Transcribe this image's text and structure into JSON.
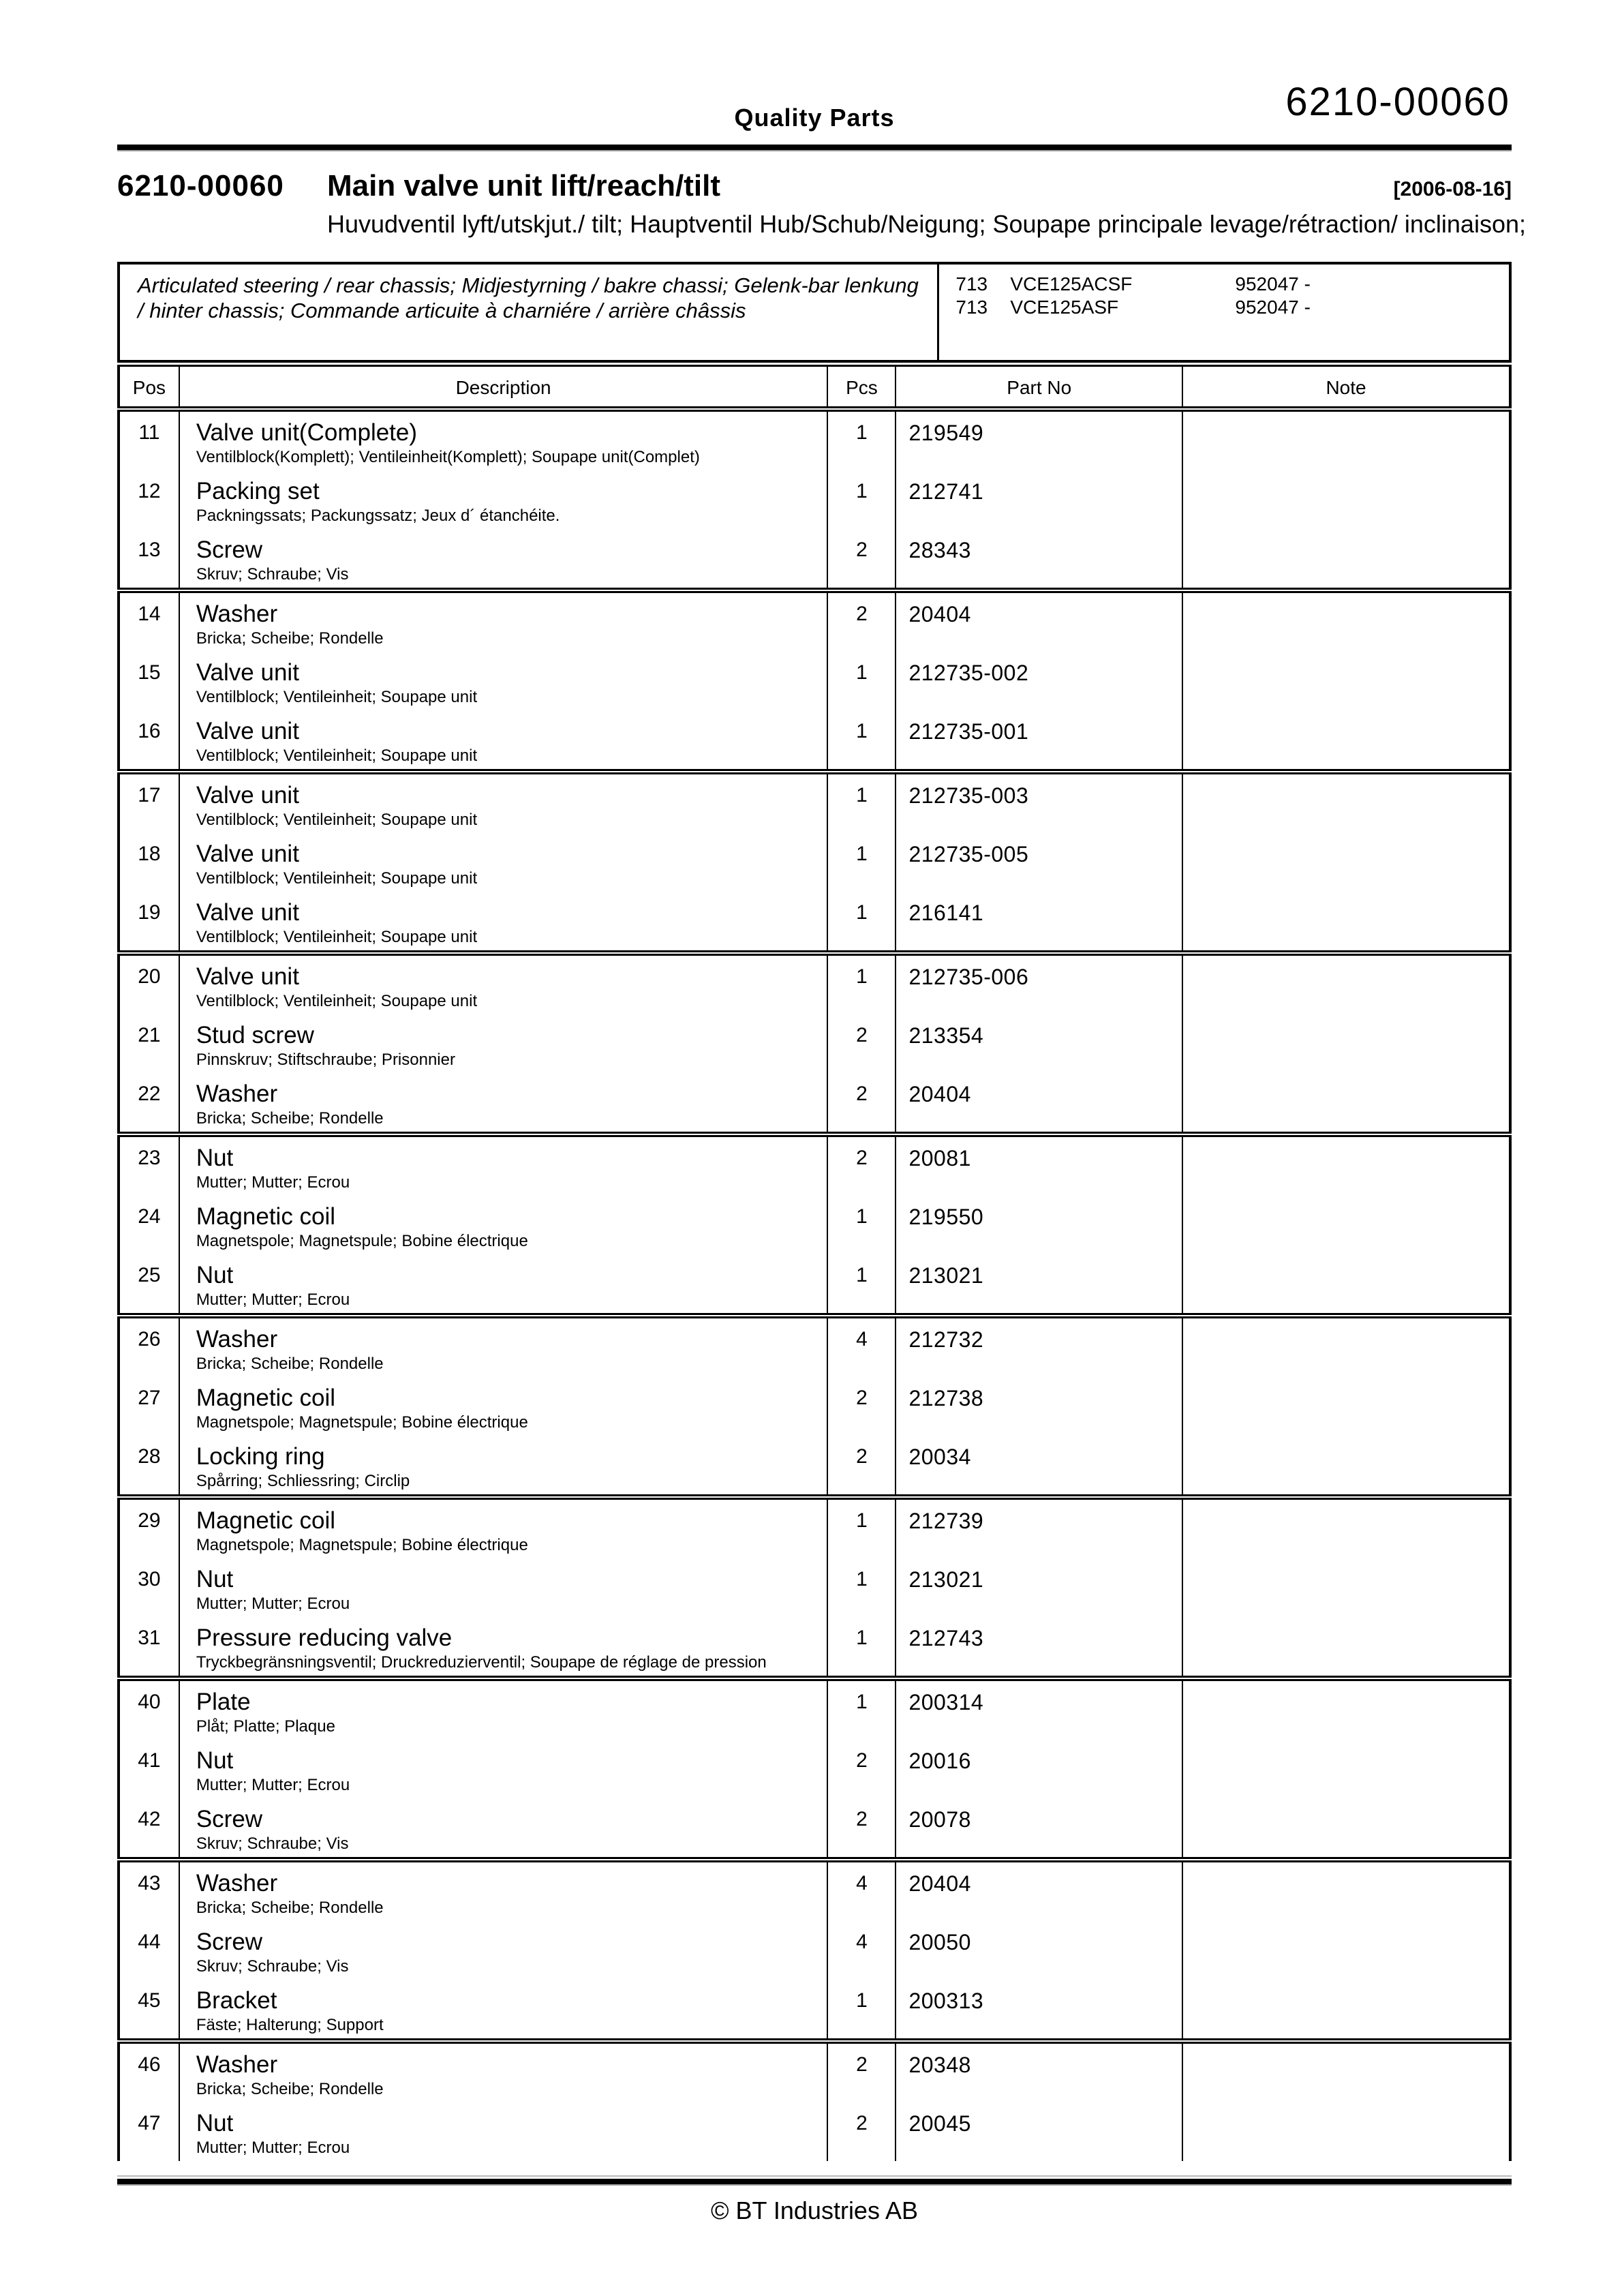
{
  "page": {
    "brand": "Quality Parts",
    "doc_code": "6210-00060",
    "title_code": "6210-00060",
    "title": "Main valve unit lift/reach/tilt",
    "date": "[2006-08-16]",
    "subtitle": "Huvudventil lyft/utskjut./ tilt; Hauptventil Hub/Schub/Neigung; Soupape principale levage/rétraction/ inclinaison;",
    "footer": "© BT Industries AB"
  },
  "info_box": {
    "description": "Articulated steering / rear chassis; Midjestyrning / bakre chassi; Gelenk-bar lenkung / hinter chassis; Commande articuite à charniére / arrière châssis",
    "models": [
      {
        "code": "713",
        "name": "VCE125ACSF",
        "serial": "952047 -"
      },
      {
        "code": "713",
        "name": "VCE125ASF",
        "serial": "952047 -"
      }
    ]
  },
  "table": {
    "headers": {
      "pos": "Pos",
      "description": "Description",
      "pcs": "Pcs",
      "part_no": "Part No",
      "note": "Note"
    },
    "groups": [
      {
        "rows": [
          {
            "pos": "11",
            "description": "Valve unit(Complete)",
            "description_i18n": "Ventilblock(Komplett); Ventileinheit(Komplett); Soupape unit(Complet)",
            "pcs": "1",
            "part_no": "219549",
            "note": ""
          },
          {
            "pos": "12",
            "description": "Packing set",
            "description_i18n": "Packningssats; Packungssatz; Jeux d´ étanchéite.",
            "pcs": "1",
            "part_no": "212741",
            "note": ""
          },
          {
            "pos": "13",
            "description": "Screw",
            "description_i18n": "Skruv; Schraube; Vis",
            "pcs": "2",
            "part_no": "28343",
            "note": ""
          }
        ]
      },
      {
        "rows": [
          {
            "pos": "14",
            "description": "Washer",
            "description_i18n": "Bricka; Scheibe; Rondelle",
            "pcs": "2",
            "part_no": "20404",
            "note": ""
          },
          {
            "pos": "15",
            "description": "Valve unit",
            "description_i18n": "Ventilblock; Ventileinheit; Soupape unit",
            "pcs": "1",
            "part_no": "212735-002",
            "note": ""
          },
          {
            "pos": "16",
            "description": "Valve unit",
            "description_i18n": "Ventilblock; Ventileinheit; Soupape unit",
            "pcs": "1",
            "part_no": "212735-001",
            "note": ""
          }
        ]
      },
      {
        "rows": [
          {
            "pos": "17",
            "description": "Valve unit",
            "description_i18n": "Ventilblock; Ventileinheit; Soupape unit",
            "pcs": "1",
            "part_no": "212735-003",
            "note": ""
          },
          {
            "pos": "18",
            "description": "Valve unit",
            "description_i18n": "Ventilblock; Ventileinheit; Soupape unit",
            "pcs": "1",
            "part_no": "212735-005",
            "note": ""
          },
          {
            "pos": "19",
            "description": "Valve unit",
            "description_i18n": "Ventilblock; Ventileinheit; Soupape unit",
            "pcs": "1",
            "part_no": "216141",
            "note": ""
          }
        ]
      },
      {
        "rows": [
          {
            "pos": "20",
            "description": "Valve unit",
            "description_i18n": "Ventilblock; Ventileinheit; Soupape unit",
            "pcs": "1",
            "part_no": "212735-006",
            "note": ""
          },
          {
            "pos": "21",
            "description": "Stud screw",
            "description_i18n": "Pinnskruv; Stiftschraube; Prisonnier",
            "pcs": "2",
            "part_no": "213354",
            "note": ""
          },
          {
            "pos": "22",
            "description": "Washer",
            "description_i18n": "Bricka; Scheibe; Rondelle",
            "pcs": "2",
            "part_no": "20404",
            "note": ""
          }
        ]
      },
      {
        "rows": [
          {
            "pos": "23",
            "description": "Nut",
            "description_i18n": "Mutter; Mutter; Ecrou",
            "pcs": "2",
            "part_no": "20081",
            "note": ""
          },
          {
            "pos": "24",
            "description": "Magnetic coil",
            "description_i18n": "Magnetspole; Magnetspule; Bobine électrique",
            "pcs": "1",
            "part_no": "219550",
            "note": ""
          },
          {
            "pos": "25",
            "description": "Nut",
            "description_i18n": "Mutter; Mutter; Ecrou",
            "pcs": "1",
            "part_no": "213021",
            "note": ""
          }
        ]
      },
      {
        "rows": [
          {
            "pos": "26",
            "description": "Washer",
            "description_i18n": "Bricka; Scheibe; Rondelle",
            "pcs": "4",
            "part_no": "212732",
            "note": ""
          },
          {
            "pos": "27",
            "description": "Magnetic coil",
            "description_i18n": "Magnetspole; Magnetspule; Bobine électrique",
            "pcs": "2",
            "part_no": "212738",
            "note": ""
          },
          {
            "pos": "28",
            "description": "Locking ring",
            "description_i18n": "Spårring; Schliessring; Circlip",
            "pcs": "2",
            "part_no": "20034",
            "note": ""
          }
        ]
      },
      {
        "rows": [
          {
            "pos": "29",
            "description": "Magnetic coil",
            "description_i18n": "Magnetspole; Magnetspule; Bobine électrique",
            "pcs": "1",
            "part_no": "212739",
            "note": ""
          },
          {
            "pos": "30",
            "description": "Nut",
            "description_i18n": "Mutter; Mutter; Ecrou",
            "pcs": "1",
            "part_no": "213021",
            "note": ""
          },
          {
            "pos": "31",
            "description": "Pressure reducing valve",
            "description_i18n": "Tryckbegränsningsventil; Druckreduzierventil; Soupape de réglage de pression",
            "pcs": "1",
            "part_no": "212743",
            "note": ""
          }
        ]
      },
      {
        "rows": [
          {
            "pos": "40",
            "description": "Plate",
            "description_i18n": "Plåt; Platte; Plaque",
            "pcs": "1",
            "part_no": "200314",
            "note": ""
          },
          {
            "pos": "41",
            "description": "Nut",
            "description_i18n": "Mutter; Mutter; Ecrou",
            "pcs": "2",
            "part_no": "20016",
            "note": ""
          },
          {
            "pos": "42",
            "description": "Screw",
            "description_i18n": "Skruv; Schraube; Vis",
            "pcs": "2",
            "part_no": "20078",
            "note": ""
          }
        ]
      },
      {
        "rows": [
          {
            "pos": "43",
            "description": "Washer",
            "description_i18n": "Bricka; Scheibe; Rondelle",
            "pcs": "4",
            "part_no": "20404",
            "note": ""
          },
          {
            "pos": "44",
            "description": "Screw",
            "description_i18n": "Skruv; Schraube; Vis",
            "pcs": "4",
            "part_no": "20050",
            "note": ""
          },
          {
            "pos": "45",
            "description": "Bracket",
            "description_i18n": "Fäste; Halterung; Support",
            "pcs": "1",
            "part_no": "200313",
            "note": ""
          }
        ]
      },
      {
        "rows": [
          {
            "pos": "46",
            "description": "Washer",
            "description_i18n": "Bricka; Scheibe; Rondelle",
            "pcs": "2",
            "part_no": "20348",
            "note": ""
          },
          {
            "pos": "47",
            "description": "Nut",
            "description_i18n": "Mutter; Mutter; Ecrou",
            "pcs": "2",
            "part_no": "20045",
            "note": ""
          }
        ]
      }
    ]
  }
}
